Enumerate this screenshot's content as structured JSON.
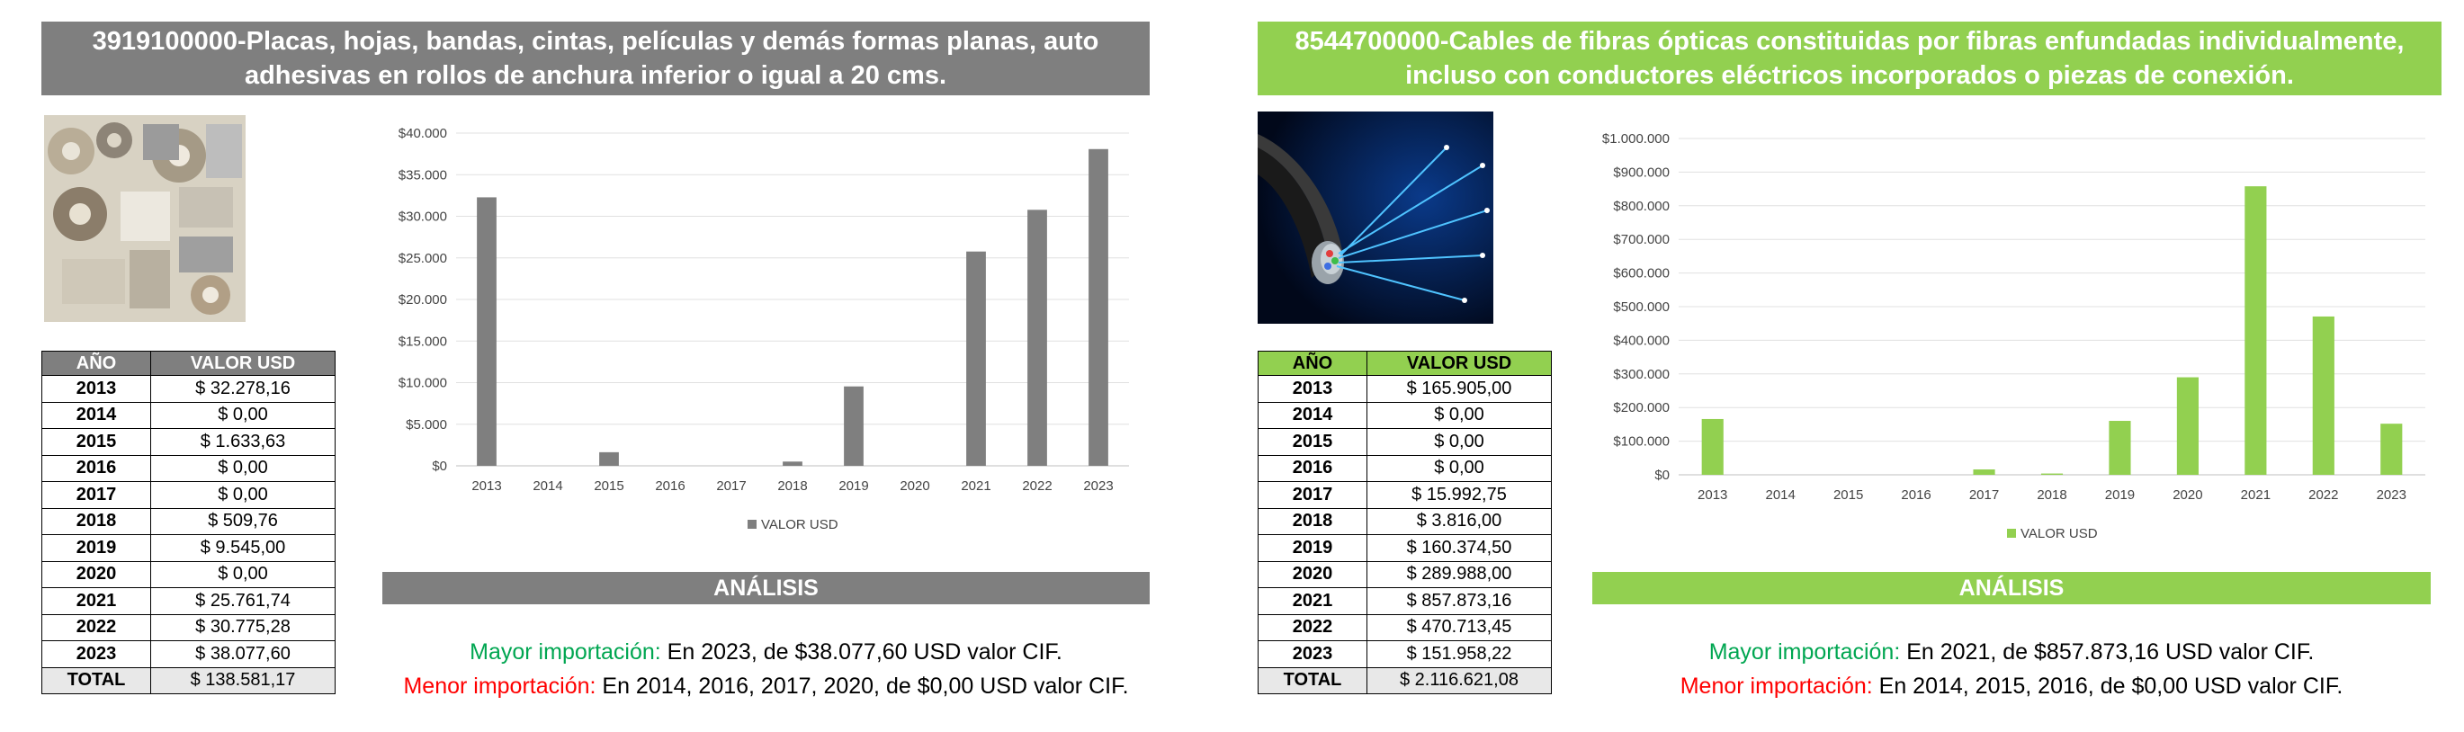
{
  "panels": [
    {
      "title": "3919100000-Placas, hojas, bandas, cintas, películas y demás formas planas, auto adhesivas en rollos de anchura inferior o igual a 20 cms.",
      "table": {
        "headers": [
          "AÑO",
          "VALOR USD"
        ],
        "rows": [
          {
            "year": "2013",
            "value": "$ 32.278,16"
          },
          {
            "year": "2014",
            "value": "$ 0,00"
          },
          {
            "year": "2015",
            "value": "$ 1.633,63"
          },
          {
            "year": "2016",
            "value": "$ 0,00"
          },
          {
            "year": "2017",
            "value": "$ 0,00"
          },
          {
            "year": "2018",
            "value": "$ 509,76"
          },
          {
            "year": "2019",
            "value": "$ 9.545,00"
          },
          {
            "year": "2020",
            "value": "$ 0,00"
          },
          {
            "year": "2021",
            "value": "$ 25.761,74"
          },
          {
            "year": "2022",
            "value": "$ 30.775,28"
          },
          {
            "year": "2023",
            "value": "$ 38.077,60"
          }
        ],
        "total_label": "TOTAL",
        "total_value": "$ 138.581,17"
      },
      "analysis": {
        "header": "ANÁLISIS",
        "mayor_label": "Mayor importación:",
        "mayor_text": " En 2023, de $38.077,60 USD valor CIF.",
        "menor_label": "Menor importación:",
        "menor_text": " En 2014, 2016, 2017, 2020, de $0,00 USD valor CIF."
      },
      "color": "#7f7f7f"
    },
    {
      "title": "8544700000-Cables de fibras ópticas constituidas por fibras enfundadas individualmente, incluso con conductores eléctricos incorporados o piezas de conexión.",
      "table": {
        "headers": [
          "AÑO",
          "VALOR USD"
        ],
        "rows": [
          {
            "year": "2013",
            "value": "$ 165.905,00"
          },
          {
            "year": "2014",
            "value": "$ 0,00"
          },
          {
            "year": "2015",
            "value": "$ 0,00"
          },
          {
            "year": "2016",
            "value": "$ 0,00"
          },
          {
            "year": "2017",
            "value": "$ 15.992,75"
          },
          {
            "year": "2018",
            "value": "$ 3.816,00"
          },
          {
            "year": "2019",
            "value": "$ 160.374,50"
          },
          {
            "year": "2020",
            "value": "$ 289.988,00"
          },
          {
            "year": "2021",
            "value": "$ 857.873,16"
          },
          {
            "year": "2022",
            "value": "$ 470.713,45"
          },
          {
            "year": "2023",
            "value": "$ 151.958,22"
          }
        ],
        "total_label": "TOTAL",
        "total_value": "$ 2.116.621,08"
      },
      "analysis": {
        "header": "ANÁLISIS",
        "mayor_label": "Mayor importación:",
        "mayor_text": " En 2021, de $857.873,16 USD valor CIF.",
        "menor_label": "Menor importación:",
        "menor_text": " En 2014, 2015, 2016, de $0,00 USD valor CIF."
      },
      "color": "#92d050"
    }
  ],
  "chart_data": [
    {
      "type": "bar",
      "categories": [
        "2013",
        "2014",
        "2015",
        "2016",
        "2017",
        "2018",
        "2019",
        "2020",
        "2021",
        "2022",
        "2023"
      ],
      "series": [
        {
          "name": "VALOR USD",
          "values": [
            32278.16,
            0,
            1633.63,
            0,
            0,
            509.76,
            9545.0,
            0,
            25761.74,
            30775.28,
            38077.6
          ]
        }
      ],
      "ylim": [
        0,
        40000
      ],
      "yticks": [
        0,
        5000,
        10000,
        15000,
        20000,
        25000,
        30000,
        35000,
        40000
      ],
      "ytick_labels": [
        "$0",
        "$5.000",
        "$10.000",
        "$15.000",
        "$20.000",
        "$25.000",
        "$30.000",
        "$35.000",
        "$40.000"
      ],
      "legend": "bottom",
      "grid": true,
      "color": "#7f7f7f"
    },
    {
      "type": "bar",
      "categories": [
        "2013",
        "2014",
        "2015",
        "2016",
        "2017",
        "2018",
        "2019",
        "2020",
        "2021",
        "2022",
        "2023"
      ],
      "series": [
        {
          "name": "VALOR USD",
          "values": [
            165905.0,
            0,
            0,
            0,
            15992.75,
            3816.0,
            160374.5,
            289988.0,
            857873.16,
            470713.45,
            151958.22
          ]
        }
      ],
      "ylim": [
        0,
        1000000
      ],
      "yticks": [
        0,
        100000,
        200000,
        300000,
        400000,
        500000,
        600000,
        700000,
        800000,
        900000,
        1000000
      ],
      "ytick_labels": [
        "$0",
        "$100.000",
        "$200.000",
        "$300.000",
        "$400.000",
        "$500.000",
        "$600.000",
        "$700.000",
        "$800.000",
        "$900.000",
        "$1.000.000"
      ],
      "legend": "bottom",
      "grid": true,
      "color": "#92d050"
    }
  ]
}
